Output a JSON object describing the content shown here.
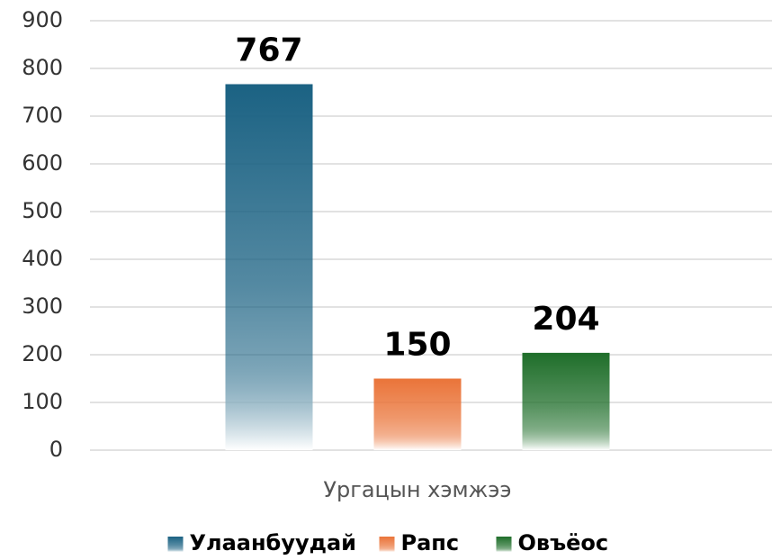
{
  "chart_data": {
    "type": "bar",
    "categories": [
      "Ургацын хэмжээ"
    ],
    "series": [
      {
        "name": "Улаанбуудай",
        "color": "#1b6283",
        "values": [
          767
        ]
      },
      {
        "name": "Рапс",
        "color": "#ea7439",
        "values": [
          150
        ]
      },
      {
        "name": "Овъёос",
        "color": "#1f6e2a",
        "values": [
          204
        ]
      }
    ],
    "ylim": [
      0,
      900
    ],
    "yticks": [
      0,
      100,
      200,
      300,
      400,
      500,
      600,
      700,
      800,
      900
    ],
    "grid": true,
    "legend": "bottom"
  }
}
